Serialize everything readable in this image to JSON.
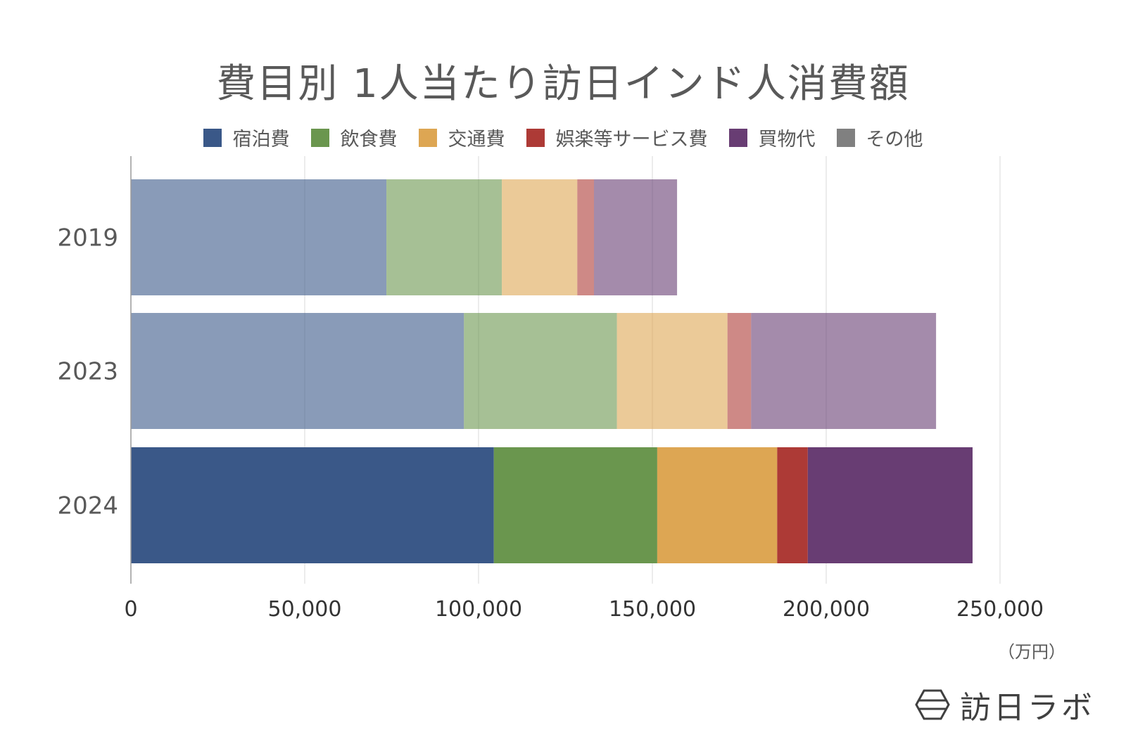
{
  "chart_data": {
    "type": "bar",
    "orientation": "horizontal",
    "stacked": true,
    "title": "費目別 1人当たり訪日インド人消費額",
    "categories": [
      "2019",
      "2023",
      "2024"
    ],
    "series": [
      {
        "name": "宿泊費",
        "color": "#3a5888",
        "values": [
          73500,
          95800,
          104400
        ]
      },
      {
        "name": "飲食費",
        "color": "#6a964e",
        "values": [
          33200,
          44000,
          47000
        ]
      },
      {
        "name": "交通費",
        "color": "#dda653",
        "values": [
          21700,
          31800,
          34500
        ]
      },
      {
        "name": "娯楽等サービス費",
        "color": "#ad3a36",
        "values": [
          4800,
          6800,
          8800
        ]
      },
      {
        "name": "買物代",
        "color": "#683d73",
        "values": [
          23900,
          53200,
          47400
        ]
      },
      {
        "name": "その他",
        "color": "#808080",
        "values": [
          0,
          0,
          0
        ]
      }
    ],
    "faded_categories": [
      "2019",
      "2023"
    ],
    "xlim": [
      0,
      250000
    ],
    "xticks": [
      "0",
      "50,000",
      "100,000",
      "150,000",
      "200,000",
      "250,000"
    ],
    "xtick_values": [
      0,
      50000,
      100000,
      150000,
      200000,
      250000
    ],
    "unit": "（万円）",
    "grid": true,
    "legend_position": "top"
  },
  "brand": {
    "name": "訪日ラボ",
    "icon": "hexagon-logo-icon"
  }
}
